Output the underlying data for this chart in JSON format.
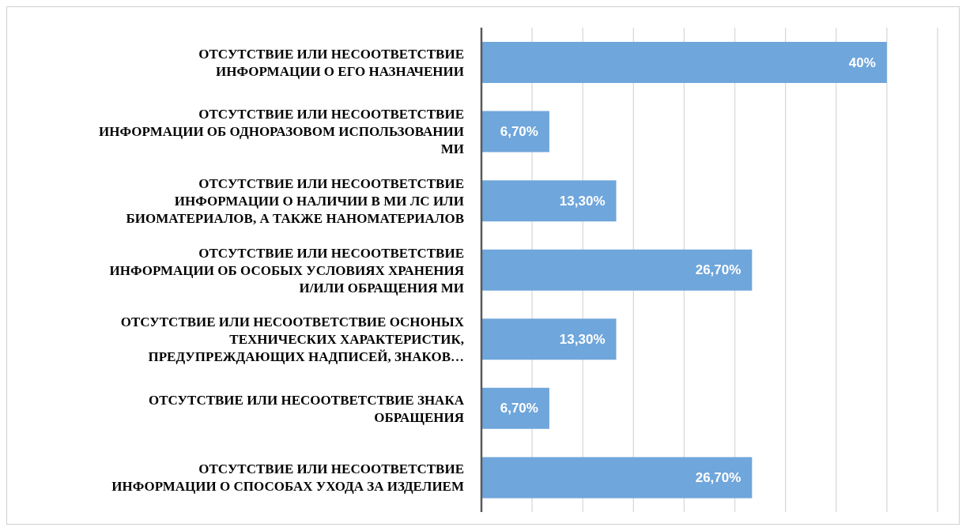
{
  "chart_data": {
    "type": "bar",
    "orientation": "horizontal",
    "categories": [
      "ОТСУТСТВИЕ ИЛИ НЕСООТВЕТСТВИЕ ИНФОРМАЦИИ О ЕГО НАЗНАЧЕНИИ",
      "ОТСУТСТВИЕ ИЛИ НЕСООТВЕТСТВИЕ ИНФОРМАЦИИ ОБ ОДНОРАЗОВОМ ИСПОЛЬЗОВАНИИ МИ",
      "ОТСУТСТВИЕ ИЛИ НЕСООТВЕТСТВИЕ ИНФОРМАЦИИ О НАЛИЧИИ В МИ ЛС ИЛИ БИОМАТЕРИАЛОВ, А ТАКЖЕ НАНОМАТЕРИАЛОВ",
      "ОТСУТСТВИЕ ИЛИ НЕСООТВЕТСТВИЕ ИНФОРМАЦИИ ОБ ОСОБЫХ УСЛОВИЯХ ХРАНЕНИЯ И/ИЛИ ОБРАЩЕНИЯ МИ",
      "ОТСУТСТВИЕ ИЛИ НЕСООТВЕТСТВИЕ ОСНОНЫХ ТЕХНИЧЕСКИХ ХАРАКТЕРИСТИК, ПРЕДУПРЕЖДАЮЩИХ НАДПИСЕЙ, ЗНАКОВ…",
      "ОТСУТСТВИЕ ИЛИ НЕСООТВЕТСТВИЕ ЗНАКА ОБРАЩЕНИЯ",
      "ОТСУТСТВИЕ ИЛИ НЕСООТВЕТСТВИЕ ИНФОРМАЦИИ О СПОСОБАХ УХОДА ЗА ИЗДЕЛИЕМ"
    ],
    "values": [
      40,
      6.7,
      13.3,
      26.7,
      13.3,
      6.7,
      26.7
    ],
    "value_labels": [
      "40%",
      "6,70%",
      "13,30%",
      "26,70%",
      "13,30%",
      "6,70%",
      "26,70%"
    ],
    "color": "#6fa6db",
    "grid": "x",
    "legend": false,
    "tick_labels": "y"
  }
}
